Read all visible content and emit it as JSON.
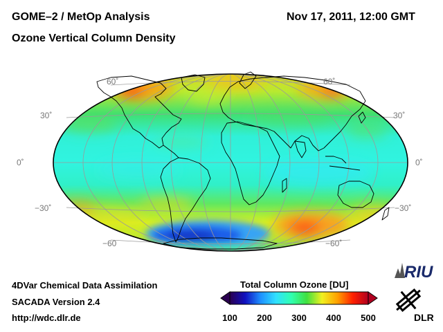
{
  "header": {
    "title_line1": "GOME–2 / MetOp Analysis",
    "title_line2": "Ozone Vertical Column Density",
    "datetime": "Nov 17, 2011, 12:00 GMT"
  },
  "map": {
    "projection": "Hammer-Aitoff (global)",
    "lat_labels_left": [
      "60˚",
      "30˚",
      "0˚",
      "−30˚",
      "−60"
    ],
    "lat_labels_right": [
      "60˚",
      "30˚",
      "0˚",
      "−30˚",
      "−60˚"
    ],
    "colors": {
      "graticule": "#9a9a9a",
      "coast": "#000000"
    }
  },
  "footer": {
    "line1": "4DVar Chemical Data Assimilation",
    "line2": "SACADA Version 2.4",
    "line3": "http://wdc.dlr.de"
  },
  "colorbar": {
    "title": "Total Column Ozone [DU]",
    "ticks": [
      "100",
      "200",
      "300",
      "400",
      "500"
    ],
    "min": 100,
    "max": 500,
    "stops": [
      "#2a0050",
      "#1010c0",
      "#1e90ff",
      "#30e0ff",
      "#30ffb0",
      "#40e040",
      "#f0f020",
      "#ffa000",
      "#ff2000",
      "#b00020"
    ]
  },
  "logos": {
    "riu": "RIU",
    "dlr": "DLR"
  }
}
